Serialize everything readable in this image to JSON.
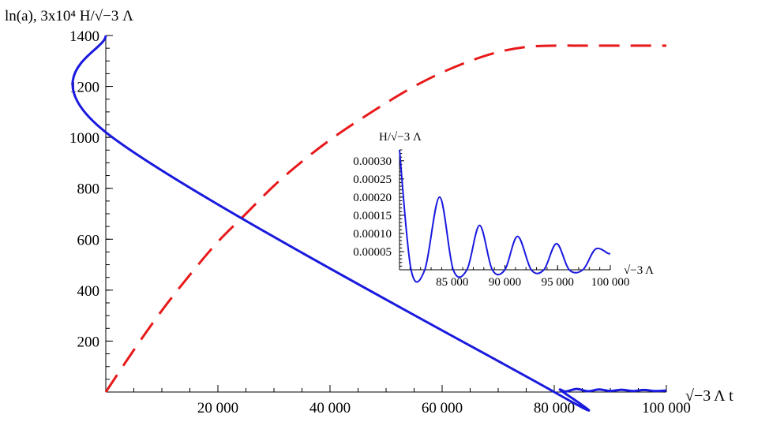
{
  "chart_data": [
    {
      "type": "line",
      "title": "",
      "xlabel": "√−3 Λ  t",
      "ylabel": "ln(a), 3x10⁴ H/√−3 Λ",
      "xlim": [
        0,
        100000
      ],
      "ylim": [
        0,
        1400
      ],
      "x_ticks": [
        20000,
        40000,
        60000,
        80000,
        100000
      ],
      "x_tick_labels": [
        "20 000",
        "40 000",
        "60 000",
        "80 000",
        "100 000"
      ],
      "y_ticks": [
        200,
        400,
        600,
        800,
        1000,
        1200,
        1400
      ],
      "y_tick_labels": [
        "200",
        "400",
        "600",
        "800",
        "1000",
        "1200",
        "1400"
      ],
      "grid": false,
      "series": [
        {
          "style": "dashed",
          "color": "#e8191a",
          "x": [
            0,
            5000,
            10000,
            15000,
            20000,
            25000,
            30000,
            35000,
            40000,
            45000,
            50000,
            55000,
            60000,
            65000,
            70000,
            75000,
            80000,
            85000,
            90000,
            95000,
            100000
          ],
          "y": [
            0,
            165,
            320,
            460,
            590,
            700,
            810,
            905,
            990,
            1065,
            1135,
            1200,
            1255,
            1300,
            1335,
            1355,
            1360,
            1360,
            1360,
            1360,
            1360
          ]
        },
        {
          "style": "solid",
          "color": "#1a1adf",
          "x": [
            0,
            0,
            80000,
            81000,
            82000,
            84000,
            86000,
            88000,
            90000,
            92000,
            94000,
            96000,
            98000,
            100000
          ],
          "y": [
            1400,
            1020,
            0,
            10,
            2,
            12,
            3,
            10,
            4,
            9,
            4,
            8,
            4,
            6
          ]
        }
      ]
    },
    {
      "type": "line",
      "title": "",
      "xlabel": "√−3 Λ",
      "ylabel": "H/√−3 Λ",
      "xlim": [
        80000,
        100000
      ],
      "ylim": [
        0,
        0.00033
      ],
      "x_ticks": [
        85000,
        90000,
        95000,
        100000
      ],
      "x_tick_labels": [
        "85 000",
        "90 000",
        "95 000",
        "100 000"
      ],
      "y_ticks": [
        5e-05,
        0.0001,
        0.00015,
        0.0002,
        0.00025,
        0.0003
      ],
      "y_tick_labels": [
        "0.00005",
        "0.00010",
        "0.00015",
        "0.00020",
        "0.00025",
        "0.00030"
      ],
      "grid": false,
      "series": [
        {
          "style": "solid",
          "color": "#1a1adf",
          "x": [
            80000,
            81100,
            82400,
            83800,
            85100,
            86400,
            87600,
            88800,
            90000,
            91200,
            92500,
            93700,
            94900,
            96100,
            97400,
            98600,
            99800,
            100000
          ],
          "y": [
            0.00033,
            0.0,
            0.0,
            0.0002,
            0.0,
            0.0,
            0.000122,
            0.0,
            0.0,
            9.2e-05,
            0.0,
            0.0,
            7.2e-05,
            0.0,
            0.0,
            5.7e-05,
            4.5e-05,
            4.5e-05
          ]
        }
      ]
    }
  ]
}
